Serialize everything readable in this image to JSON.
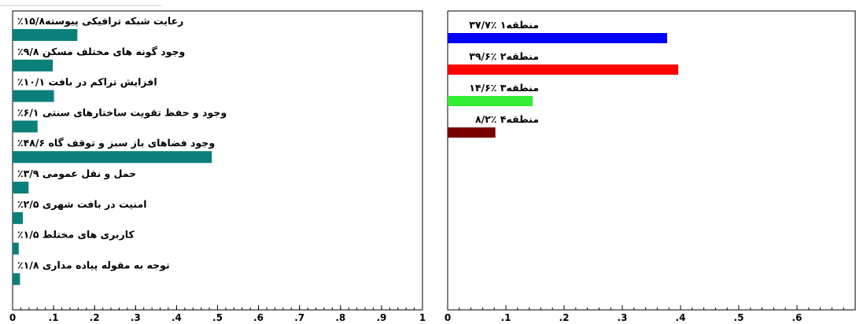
{
  "chart_data": [
    {
      "type": "bar",
      "orientation": "horizontal",
      "categories": [
        "رعایت شبکه ترافیکی پیوسته۱۵/۸٪",
        "وجود گونه های مختلف مسکن ۹/۸٪",
        "افزایش تراکم در بافت ۱۰/۱٪",
        "وجود و حفظ تقویت ساختارهای سنتی ۶/۱٪",
        "وجود فضاهای باز سبز و توقف گاه ۴۸/۶٪",
        "حمل و نقل عمومی ۳/۹٪",
        "امنیت در بافت شهری ۲/۵٪",
        "کاربری های مختلط ۱/۵٪",
        "توجه به مقوله پیاده مداری ۱/۸٪"
      ],
      "values": [
        0.158,
        0.098,
        0.101,
        0.061,
        0.486,
        0.039,
        0.025,
        0.015,
        0.018
      ],
      "bar_color": "#0b7f7a",
      "xlim": [
        0,
        1
      ],
      "xticks": [
        "0",
        ".1",
        ".2",
        ".3",
        ".4",
        ".5",
        ".6",
        ".7",
        ".8",
        ".9",
        "1"
      ]
    },
    {
      "type": "bar",
      "orientation": "horizontal",
      "categories": [
        "منطقه۱ ٪۳۷/۷",
        "منطقه۲ ٪۳۹/۶",
        "منطقه۳ ٪۱۴/۶",
        "منطقه۴ ٪۸/۲"
      ],
      "values": [
        0.377,
        0.396,
        0.146,
        0.082
      ],
      "colors": [
        "#0000ff",
        "#ff0000",
        "#33ee33",
        "#7a0000"
      ],
      "xlim": [
        0,
        0.7
      ],
      "xticks": [
        "0",
        ".1",
        ".2",
        ".3",
        ".4",
        ".5",
        ".6"
      ]
    }
  ]
}
